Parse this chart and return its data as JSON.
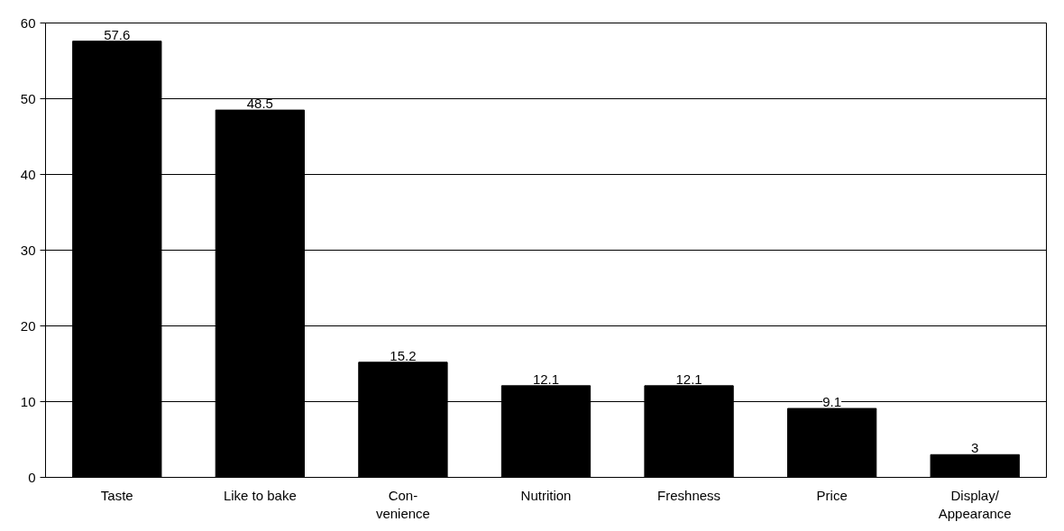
{
  "chart_data": {
    "type": "bar",
    "categories": [
      "Taste",
      "Like to bake",
      "Con-\nvenience",
      "Nutrition",
      "Freshness",
      "Price",
      "Display/\nAppearance"
    ],
    "values": [
      57.6,
      48.5,
      15.2,
      12.1,
      12.1,
      9.1,
      3
    ],
    "color": "#000000",
    "ylim": [
      0,
      60
    ],
    "yticks": [
      0,
      10,
      20,
      30,
      40,
      50,
      60
    ],
    "grid": "y",
    "data_labels": true
  }
}
